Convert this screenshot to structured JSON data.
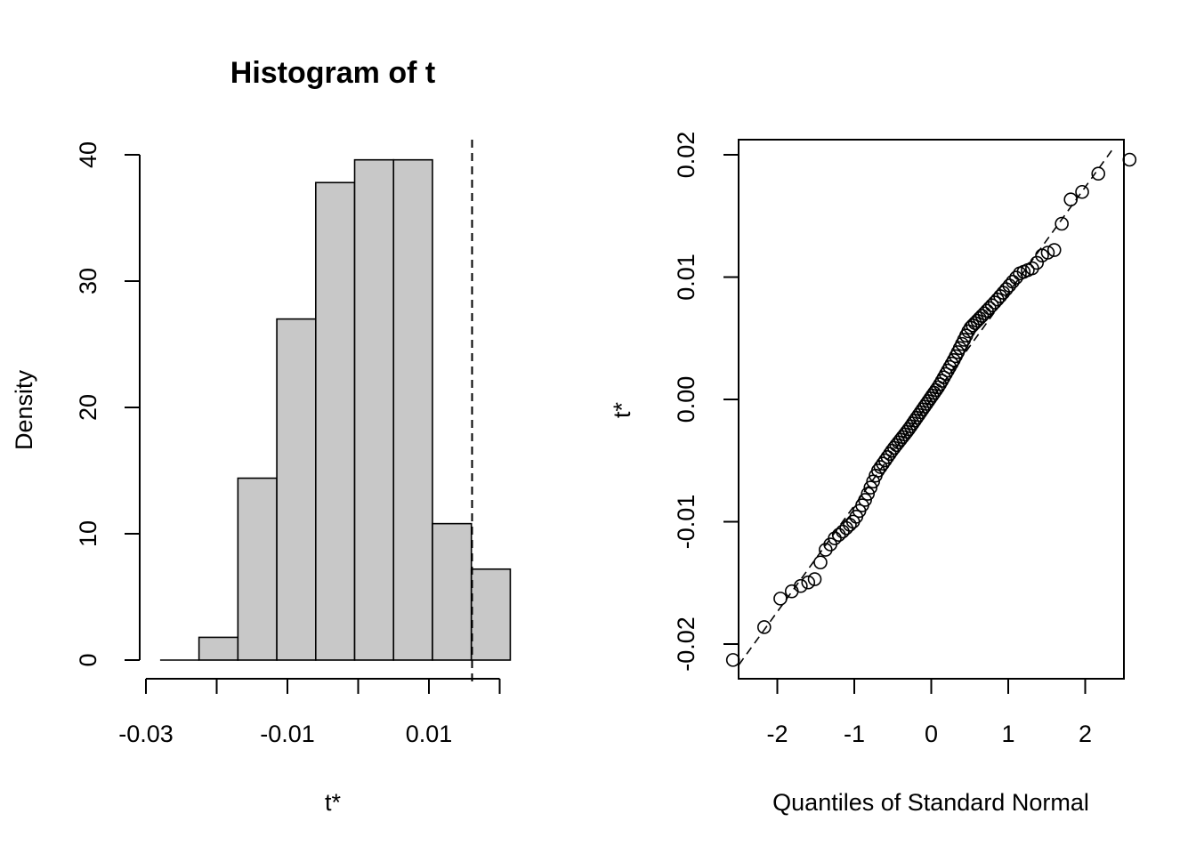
{
  "chart_data": [
    {
      "type": "bar",
      "title": "Histogram of t",
      "xlabel": "t*",
      "ylabel": "Density",
      "bin_edges": [
        -0.028,
        -0.0225,
        -0.017,
        -0.0115,
        -0.006,
        -0.0005,
        0.005,
        0.0105,
        0.016,
        0.0215
      ],
      "values": [
        0.0,
        1.8,
        14.4,
        27.0,
        37.8,
        39.6,
        39.6,
        10.8,
        7.2
      ],
      "xticks": [
        -0.03,
        -0.02,
        -0.01,
        0.0,
        0.01,
        0.02
      ],
      "xtick_labels": [
        "-0.03",
        "",
        "-0.01",
        "",
        "0.01",
        ""
      ],
      "yticks": [
        0,
        10,
        20,
        30,
        40
      ],
      "ytick_labels": [
        "0",
        "10",
        "20",
        "30",
        "40"
      ],
      "ylim": [
        0,
        40
      ],
      "vline": {
        "x": 0.0161,
        "style": "dashed"
      },
      "bar_fill": "#c8c8c8"
    },
    {
      "type": "scatter",
      "title": "",
      "xlabel": "Quantiles of Standard Normal",
      "ylabel": "t*",
      "xlim": [
        -2.5,
        2.5
      ],
      "ylim": [
        -0.0215,
        0.0205
      ],
      "xticks": [
        -2,
        -1,
        0,
        1,
        2
      ],
      "xtick_labels": [
        "-2",
        "-1",
        "0",
        "1",
        "2"
      ],
      "yticks": [
        -0.02,
        -0.01,
        0.0,
        0.01,
        0.02
      ],
      "ytick_labels": [
        "-0.02",
        "-0.01",
        "0.00",
        "0.01",
        "0.02"
      ],
      "reference_line": {
        "slope": 0.00868,
        "intercept": 0.0,
        "style": "dashed"
      },
      "n_points": 100,
      "quantile_anchors": {
        "q": [
          -2.33,
          -2.05,
          -1.88,
          -1.75,
          -1.64,
          -1.55,
          -1.48,
          -1.41,
          -1.34,
          -1.28,
          -1.15,
          -1.0,
          -0.85,
          -0.7,
          -0.5,
          -0.3,
          -0.1,
          0.0,
          0.1,
          0.3,
          0.5,
          0.7,
          0.85,
          1.0,
          1.15,
          1.34,
          1.41,
          1.48,
          1.55,
          1.64,
          1.75,
          1.88,
          2.05,
          2.33
        ],
        "t": [
          -0.0213,
          -0.0166,
          -0.016,
          -0.0154,
          -0.0151,
          -0.0148,
          -0.0146,
          -0.0124,
          -0.0122,
          -0.0115,
          -0.0108,
          -0.0099,
          -0.0081,
          -0.0059,
          -0.0041,
          -0.0025,
          -0.0007,
          0.0002,
          0.0011,
          0.0033,
          0.0058,
          0.0071,
          0.0081,
          0.0092,
          0.0103,
          0.0108,
          0.0116,
          0.012,
          0.012,
          0.0124,
          0.0163,
          0.0164,
          0.0176,
          0.0196
        ]
      }
    }
  ]
}
